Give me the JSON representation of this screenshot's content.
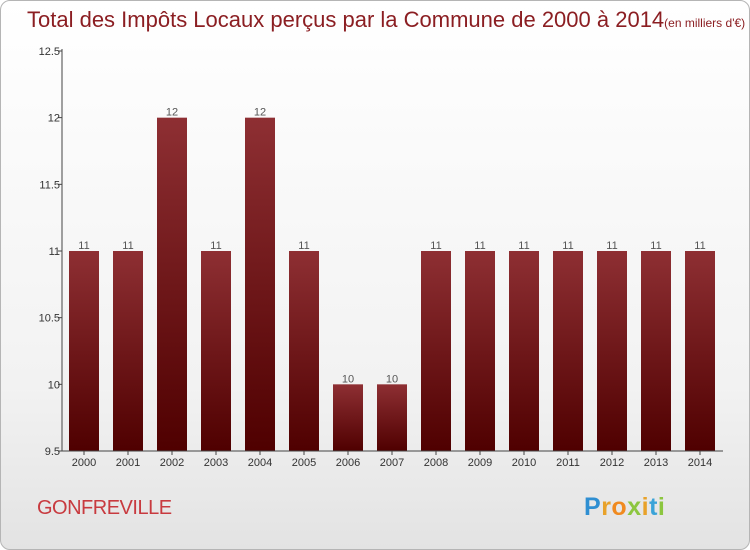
{
  "title": "Total des Impôts Locaux perçus par la Commune de 2000 à 2014",
  "unit": "(en milliers d'€)",
  "commune": "GONFREVILLE",
  "logo": {
    "letters": [
      "P",
      "r",
      "o",
      "x",
      "i",
      "t",
      "i"
    ],
    "colors": [
      "#2f8fd2",
      "#e8a22a",
      "#f08a1f",
      "#8cc63f",
      "#e8a22a",
      "#3aa3d8",
      "#8cc63f"
    ]
  },
  "colors": {
    "bar_top": "#8e2f33",
    "bar_bottom": "#4f0000",
    "title": "#8b1e22"
  },
  "chart_data": {
    "type": "bar",
    "categories": [
      "2000",
      "2001",
      "2002",
      "2003",
      "2004",
      "2005",
      "2006",
      "2007",
      "2008",
      "2009",
      "2010",
      "2011",
      "2012",
      "2013",
      "2014"
    ],
    "values": [
      11,
      11,
      12,
      11,
      12,
      11,
      10,
      10,
      11,
      11,
      11,
      11,
      11,
      11,
      11
    ],
    "data_labels": [
      "11",
      "11",
      "12",
      "11",
      "12",
      "11",
      "10",
      "10",
      "11",
      "11",
      "11",
      "11",
      "11",
      "11",
      "11"
    ],
    "ylim": [
      9.5,
      12.5
    ],
    "yticks": [
      9.5,
      10,
      10.5,
      11,
      11.5,
      12,
      12.5
    ],
    "ytick_labels": [
      "9.5",
      "10",
      "10.5",
      "11",
      "11.5",
      "12",
      "12.5"
    ],
    "xlabel": "",
    "ylabel": "",
    "grid": false
  }
}
